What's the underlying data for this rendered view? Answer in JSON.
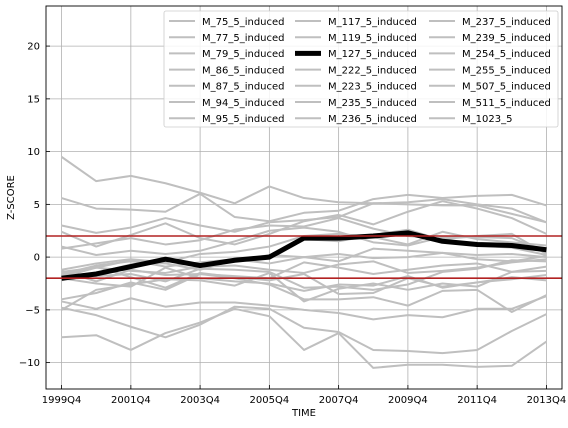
{
  "chart_data": {
    "type": "line",
    "title": "",
    "xlabel": "TIME",
    "ylabel": "Z-SCORE",
    "x": [
      "1999Q4",
      "2000Q4",
      "2001Q4",
      "2002Q4",
      "2003Q4",
      "2004Q4",
      "2005Q4",
      "2006Q4",
      "2007Q4",
      "2008Q4",
      "2009Q4",
      "2010Q4",
      "2011Q4",
      "2012Q4",
      "2013Q4"
    ],
    "x_tick_labels": [
      "1999Q4",
      "2001Q4",
      "2003Q4",
      "2005Q4",
      "2007Q4",
      "2009Q4",
      "2011Q4",
      "2013Q4"
    ],
    "ylim": [
      -12.5,
      23.8
    ],
    "y_ticks": [
      -10,
      -5,
      0,
      5,
      10,
      15,
      20
    ],
    "y_tick_labels": [
      "−10",
      "−5",
      "0",
      "5",
      "10",
      "15",
      "20"
    ],
    "grid": true,
    "legend_position": "top-right",
    "legend_columns": 3,
    "thresholds": [
      {
        "value": 2,
        "color": "#b22222"
      },
      {
        "value": -2,
        "color": "#b22222"
      }
    ],
    "colors": {
      "background_series": "#bfbfbf",
      "highlight_series": "#000000",
      "threshold": "#b22222",
      "grid": "#b0b0b0"
    },
    "highlight_series": "M_127_5_induced",
    "series": [
      {
        "name": "M_75_5_induced",
        "values": [
          9.5,
          7.2,
          7.7,
          7.0,
          6.1,
          5.1,
          6.7,
          5.6,
          5.2,
          5.1,
          5.2,
          5.5,
          5.0,
          4.6,
          3.3
        ]
      },
      {
        "name": "M_77_5_induced",
        "values": [
          5.6,
          4.6,
          4.5,
          4.3,
          6.0,
          3.8,
          3.4,
          4.2,
          4.4,
          5.5,
          5.9,
          5.6,
          5.8,
          5.9,
          4.9
        ]
      },
      {
        "name": "M_79_5_induced",
        "values": [
          3.0,
          2.3,
          2.8,
          3.7,
          3.0,
          2.4,
          3.3,
          3.5,
          3.8,
          5.1,
          5.0,
          4.9,
          4.9,
          4.1,
          3.3
        ]
      },
      {
        "name": "M_86_5_induced",
        "values": [
          2.4,
          1.0,
          2.1,
          3.2,
          1.8,
          1.2,
          2.2,
          3.4,
          4.0,
          3.1,
          4.3,
          5.3,
          4.6,
          3.7,
          2.2
        ]
      },
      {
        "name": "M_87_5_induced",
        "values": [
          0.8,
          1.3,
          1.8,
          1.2,
          1.6,
          2.6,
          3.0,
          2.9,
          3.7,
          2.7,
          2.0,
          1.7,
          2.0,
          2.2,
          0.3
        ]
      },
      {
        "name": "M_94_5_induced",
        "values": [
          -1.2,
          -0.6,
          -0.2,
          -0.5,
          0.3,
          0.5,
          1.0,
          2.0,
          2.2,
          1.9,
          1.2,
          2.4,
          1.7,
          1.4,
          1.1
        ]
      },
      {
        "name": "M_95_5_induced",
        "values": [
          -1.6,
          -0.8,
          -0.4,
          -0.6,
          -1.2,
          -0.3,
          -0.1,
          1.7,
          1.5,
          2.1,
          2.6,
          1.6,
          1.1,
          0.9,
          0.2
        ]
      },
      {
        "name": "M_117_5_induced",
        "values": [
          -2.2,
          -1.5,
          -0.7,
          -0.2,
          -0.8,
          -0.4,
          0.2,
          0.0,
          0.3,
          -0.1,
          0.0,
          0.4,
          -0.2,
          -0.4,
          0.1
        ]
      },
      {
        "name": "M_119_5_induced",
        "values": [
          -1.9,
          -1.0,
          -1.3,
          -1.5,
          -0.9,
          -0.8,
          -1.2,
          -1.5,
          -0.7,
          -0.4,
          -1.5,
          -1.3,
          -1.0,
          -0.5,
          -0.2
        ]
      },
      {
        "name": "M_127_5_induced",
        "values": [
          -2.0,
          -1.6,
          -0.9,
          -0.2,
          -0.8,
          -0.3,
          0.0,
          1.8,
          1.8,
          2.0,
          2.3,
          1.5,
          1.2,
          1.1,
          0.7
        ]
      },
      {
        "name": "M_222_5_induced",
        "values": [
          -1.3,
          -2.3,
          -1.2,
          -1.7,
          -1.6,
          -1.8,
          -2.0,
          -0.5,
          -1.0,
          -1.6,
          -1.2,
          -0.8,
          -0.6,
          -1.4,
          -0.9
        ]
      },
      {
        "name": "M_223_5_induced",
        "values": [
          -2.0,
          -2.5,
          -2.8,
          -1.0,
          -2.0,
          -2.3,
          -2.5,
          -3.2,
          -2.6,
          -2.7,
          -1.8,
          -2.9,
          -2.4,
          -1.9,
          -2.2
        ]
      },
      {
        "name": "M_235_5_induced",
        "values": [
          -4.2,
          -4.9,
          -3.9,
          -4.7,
          -4.3,
          -4.3,
          -4.6,
          -5.0,
          -5.3,
          -5.9,
          -5.5,
          -5.7,
          -4.9,
          -4.9,
          -3.7
        ]
      },
      {
        "name": "M_236_5_induced",
        "values": [
          -4.8,
          -5.5,
          -6.6,
          -7.6,
          -6.4,
          -4.7,
          -4.9,
          -6.7,
          -7.1,
          -8.8,
          -8.9,
          -9.1,
          -8.8,
          -7.0,
          -5.4
        ]
      },
      {
        "name": "M_237_5_induced",
        "values": [
          -7.6,
          -7.4,
          -8.8,
          -7.2,
          -6.2,
          -4.9,
          -5.6,
          -8.8,
          -7.2,
          -10.5,
          -10.2,
          -10.2,
          -10.4,
          -10.3,
          -8.0
        ]
      },
      {
        "name": "M_239_5_induced",
        "values": [
          -4.0,
          -3.4,
          -2.4,
          -3.1,
          -1.6,
          -2.0,
          -2.6,
          -4.0,
          -4.0,
          -3.8,
          -4.6,
          -3.2,
          -3.1,
          -5.2,
          -3.6
        ]
      },
      {
        "name": "M_254_5_induced",
        "values": [
          -5.0,
          -3.1,
          -2.6,
          -2.1,
          -2.2,
          -2.7,
          -1.5,
          -4.2,
          -3.0,
          -2.5,
          -3.1,
          -2.5,
          -2.8,
          -1.4,
          -1.3
        ]
      },
      {
        "name": "M_255_5_induced",
        "values": [
          -1.8,
          -0.9,
          -1.9,
          -2.9,
          -1.5,
          -1.9,
          -2.2,
          -1.6,
          -3.5,
          -3.4,
          -2.0,
          -2.8,
          -2.4,
          -2.1,
          -1.7
        ]
      },
      {
        "name": "M_507_5_induced",
        "values": [
          1.0,
          0.2,
          0.6,
          0.3,
          0.6,
          1.5,
          2.5,
          2.8,
          2.4,
          1.4,
          1.1,
          1.9,
          1.9,
          1.8,
          0.5
        ]
      },
      {
        "name": "M_511_5_induced",
        "values": [
          -1.5,
          -1.8,
          -1.6,
          -2.3,
          -1.1,
          -1.2,
          -1.4,
          -2.9,
          -2.8,
          -3.1,
          -2.6,
          -1.4,
          -1.1,
          -0.3,
          -0.4
        ]
      },
      {
        "name": "M_1023_5",
        "values": [
          -1.4,
          -1.0,
          -0.3,
          -0.9,
          -0.5,
          -0.2,
          -0.6,
          0.0,
          -0.4,
          0.8,
          0.6,
          0.4,
          0.2,
          0.3,
          0.0
        ]
      }
    ]
  }
}
